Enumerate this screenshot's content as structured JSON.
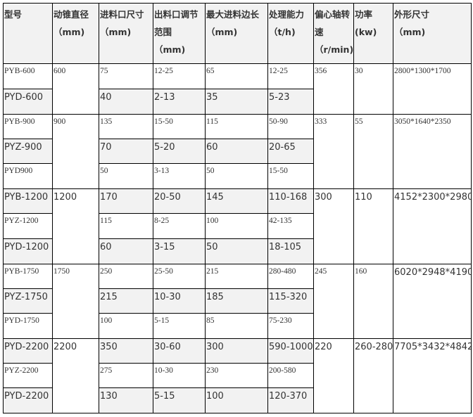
{
  "headers": [
    "型号",
    "动锥直径\n（mm)",
    "进料口尺寸\n（mm)",
    "出料口调节范围\n（mm)",
    "最大进料边长\n（mm)",
    "处理能力\n（t/h)",
    "偏心轴转速\n（r/min)",
    "功率\n(kw)",
    "外形尺寸\n（mm)"
  ],
  "groups": [
    {
      "diameter": "600",
      "speed": "356",
      "power": "30",
      "size": "2800*1300*1700",
      "rows": [
        [
          "PYB-600",
          "75",
          "12-25",
          "65",
          "12-25"
        ],
        [
          "PYD-600",
          "40",
          "2-13",
          "35",
          "5-23"
        ]
      ]
    },
    {
      "diameter": "900",
      "speed": "333",
      "power": "55",
      "size": "3050*1640*2350",
      "rows": [
        [
          "PYB-900",
          "135",
          "15-50",
          "115",
          "50-90"
        ],
        [
          "PYZ-900",
          "70",
          "5-20",
          "60",
          "20-65"
        ],
        [
          "PYD900",
          "50",
          "3-13",
          "50",
          "15-50"
        ]
      ]
    },
    {
      "diameter": "1200",
      "speed": "300",
      "power": "110",
      "size": "4152*2300*2980",
      "rows": [
        [
          "PYB-1200",
          "170",
          "20-50",
          "145",
          "110-168"
        ],
        [
          "PYZ-1200",
          "115",
          "8-25",
          "100",
          "42-135"
        ],
        [
          "PYD-1200",
          "60",
          "3-15",
          "50",
          "18-105"
        ]
      ]
    },
    {
      "diameter": "1750",
      "speed": "245",
      "power": "160",
      "size": "6020*2948*4190",
      "rows": [
        [
          "PYB-1750",
          "250",
          "25-50",
          "215",
          "280-480"
        ],
        [
          "PYZ-1750",
          "215",
          "10-30",
          "185",
          "115-320"
        ],
        [
          "PYD-1750",
          "100",
          "5-15",
          "85",
          "75-230"
        ]
      ]
    },
    {
      "diameter": "2200",
      "speed": "220",
      "power": "260-280",
      "size": "7705*3432*4842",
      "rows": [
        [
          "PYD-2200",
          "350",
          "30-60",
          "300",
          "590-1000"
        ],
        [
          "PYZ-2200",
          "275",
          "10-30",
          "230",
          "200-580"
        ],
        [
          "PYD-2200",
          "130",
          "5-15",
          "100",
          "120-370"
        ]
      ]
    }
  ]
}
